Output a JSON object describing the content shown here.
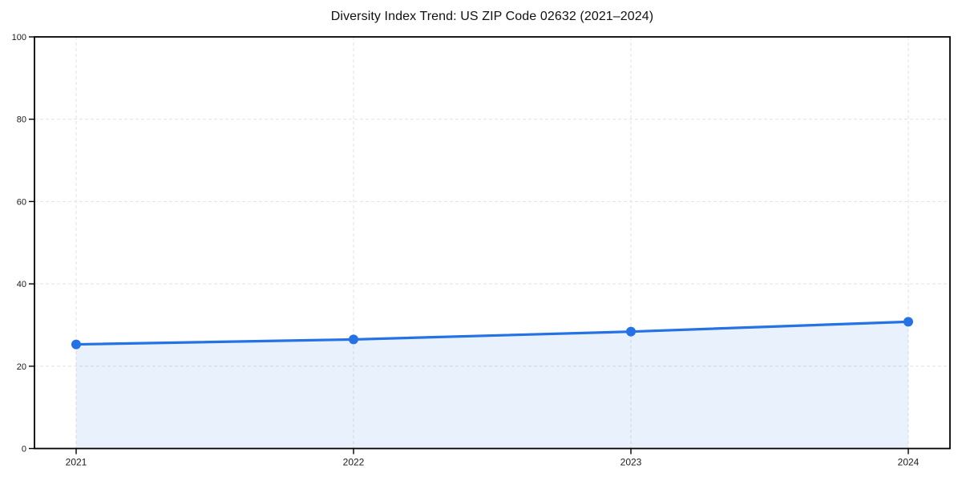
{
  "chart_data": {
    "type": "area",
    "title": "Diversity Index Trend: US ZIP Code 02632 (2021–2024)",
    "x": [
      "2021",
      "2022",
      "2023",
      "2024"
    ],
    "series": [
      {
        "name": "Diversity Index",
        "values": [
          25.3,
          26.5,
          28.4,
          30.8
        ]
      }
    ],
    "xlabel": "",
    "ylabel": "",
    "ylim": [
      0,
      100
    ],
    "yticks": [
      0,
      20,
      40,
      60,
      80,
      100
    ],
    "grid": true,
    "grid_style": "dashed",
    "legend_position": "none",
    "colors": {
      "line": "#2472e4",
      "fill_opacity": 0.1,
      "grid": "#e2e2e2",
      "spine": "#000000",
      "text": "#1a1a1a",
      "background": "#ffffff"
    }
  }
}
